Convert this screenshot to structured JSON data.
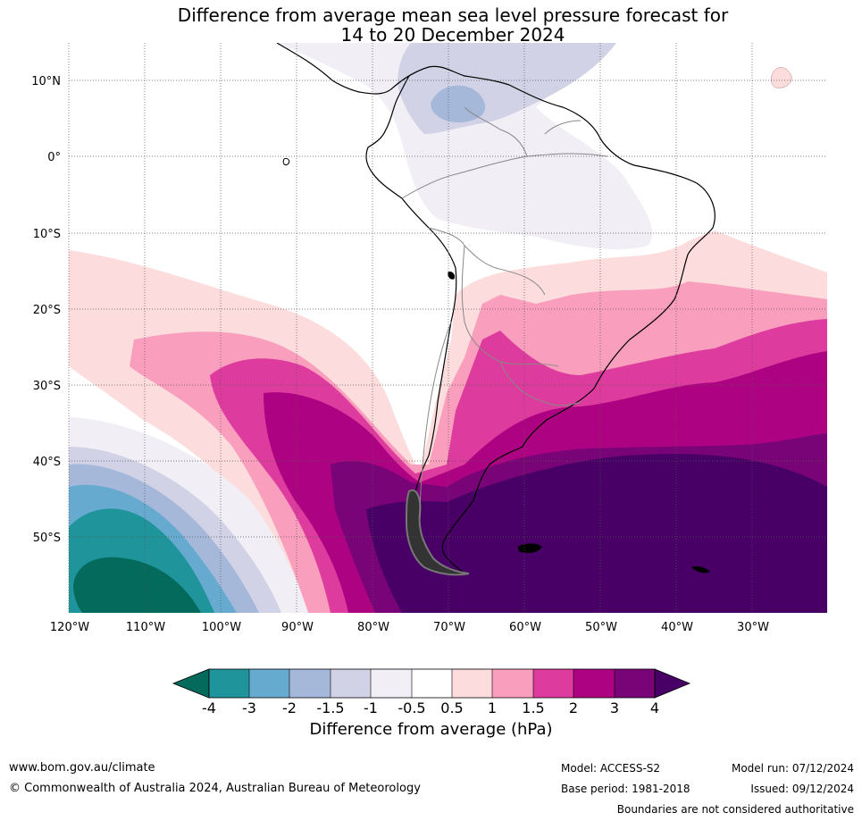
{
  "title_line1": "Difference from average mean sea level pressure forecast for",
  "title_line2": "14 to 20 December 2024",
  "lat_labels": [
    "10°N",
    "0°",
    "10°S",
    "20°S",
    "30°S",
    "40°S",
    "50°S"
  ],
  "lon_labels": [
    "120°W",
    "110°W",
    "100°W",
    "90°W",
    "80°W",
    "70°W",
    "60°W",
    "50°W",
    "40°W",
    "30°W"
  ],
  "legend": {
    "title": "Difference from average (hPa)",
    "tick_labels": [
      "-4",
      "-3",
      "-2",
      "-1.5",
      "-1",
      "-0.5",
      "0.5",
      "1",
      "1.5",
      "2",
      "3",
      "4"
    ],
    "colors": {
      "lt_-4": "#046a5c",
      "-4_-3": "#1f949a",
      "-3_-2": "#67aad0",
      "-2_-1.5": "#a5b8d9",
      "-1.5_-1": "#d2d2e7",
      "-1_-0.5": "#f1eef5",
      "-0.5_0.5": "#ffffff",
      "0.5_1": "#fddcdd",
      "1_1.5": "#f99fbd",
      "1.5_2": "#de3b9e",
      "2_3": "#ad0382",
      "3_4": "#790477",
      "gt_4": "#490066"
    }
  },
  "footer": {
    "website": "www.bom.gov.au/climate",
    "copyright": "© Commonwealth of Australia 2024, Australian Bureau of Meteorology",
    "model": "Model: ACCESS-S2",
    "base_period": "Base period: 1981-2018",
    "model_run": "Model run: 07/12/2024",
    "issued": "Issued: 09/12/2024",
    "disclaimer": "Boundaries are not considered authoritative"
  }
}
